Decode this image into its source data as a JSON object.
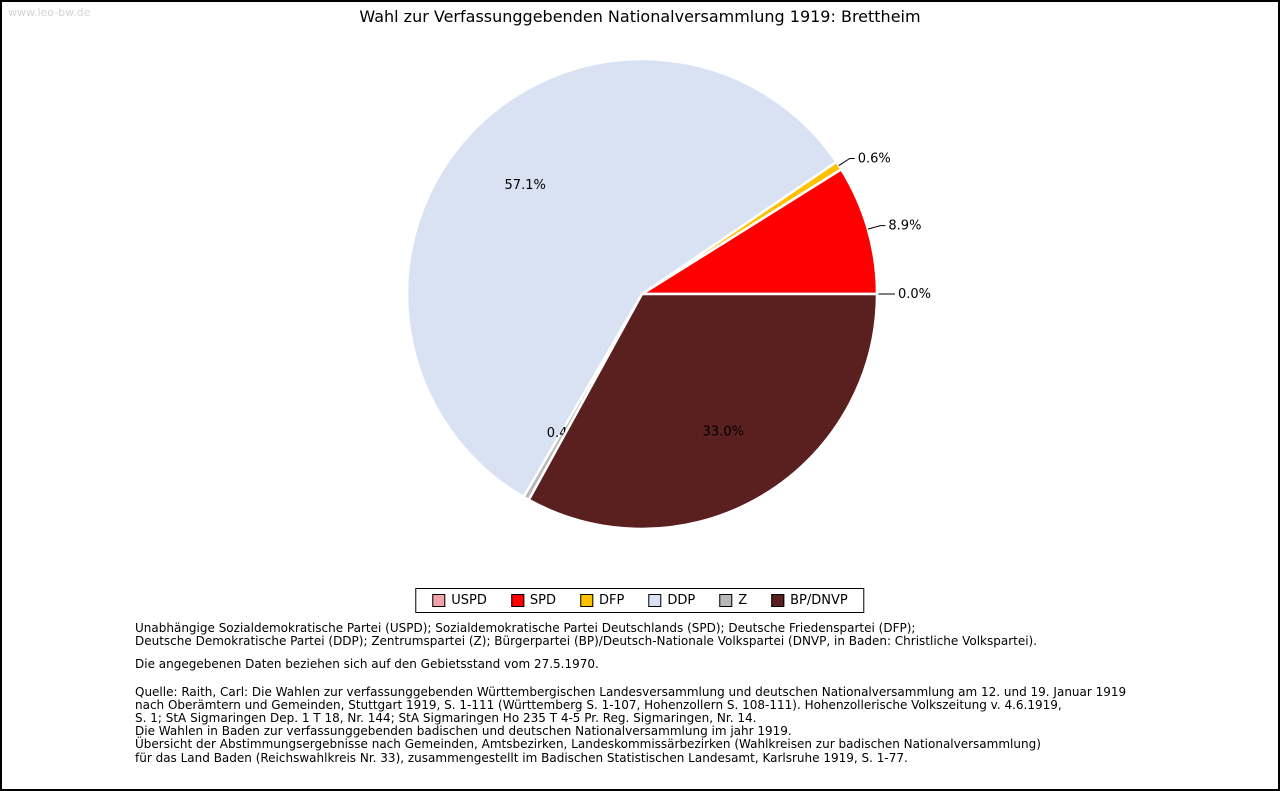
{
  "page": {
    "watermark": "www.leo-bw.de",
    "title": "Wahl zur Verfassunggebenden Nationalversammlung 1919: Brettheim"
  },
  "chart_data": {
    "type": "pie",
    "title": "Wahl zur Verfassunggebenden Nationalversammlung 1919: Brettheim",
    "unit": "%",
    "direction": "counterclockwise",
    "start_angle_deg": 0,
    "legend_position": "bottom",
    "slices": [
      {
        "label": "USPD",
        "value": 0.0,
        "color": "#f1a3a9",
        "label_outside": true
      },
      {
        "label": "SPD",
        "value": 8.9,
        "color": "#fe0000",
        "label_outside": true
      },
      {
        "label": "DFP",
        "value": 0.6,
        "color": "#ffc000",
        "label_outside": true
      },
      {
        "label": "DDP",
        "value": 57.1,
        "color": "#d8e2f2",
        "label_outside": false
      },
      {
        "label": "Z",
        "value": 0.4,
        "color": "#b8b8b8",
        "label_outside": false
      },
      {
        "label": "BP/DNVP",
        "value": 33.0,
        "color": "#5a2020",
        "label_outside": false
      }
    ]
  },
  "footnotes": {
    "abbreviations": [
      "Unabhängige Sozialdemokratische Partei (USPD); Sozialdemokratische Partei Deutschlands (SPD); Deutsche Friedenspartei (DFP);",
      "Deutsche Demokratische Partei (DDP); Zentrumspartei (Z); Bürgerpartei (BP)/Deutsch-Nationale Volkspartei (DNVP, in Baden: Christliche Volkspartei)."
    ],
    "data_note": "Die angegebenen Daten beziehen sich auf den Gebietsstand vom 27.5.1970.",
    "source": [
      "Quelle: Raith, Carl: Die Wahlen zur verfassunggebenden Württembergischen Landesversammlung und deutschen Nationalversammlung am 12. und 19. Januar 1919",
      "nach Oberämtern und Gemeinden, Stuttgart 1919, S. 1-111 (Württemberg S. 1-107, Hohenzollern S. 108-111). Hohenzollerische Volkszeitung v. 4.6.1919,",
      "S. 1; StA Sigmaringen Dep. 1 T 18, Nr. 144; StA Sigmaringen Ho 235 T 4-5 Pr. Reg. Sigmaringen, Nr. 14.",
      "Die Wahlen in Baden zur verfassunggebenden badischen und deutschen Nationalversammlung im jahr 1919.",
      "Übersicht der Abstimmungsergebnisse nach Gemeinden, Amtsbezirken, Landeskommissärbezirken (Wahlkreisen zur badischen Nationalversammlung)",
      "für das Land Baden (Reichswahlkreis Nr. 33), zusammengestellt im Badischen Statistischen Landesamt, Karlsruhe 1919, S. 1-77."
    ]
  }
}
